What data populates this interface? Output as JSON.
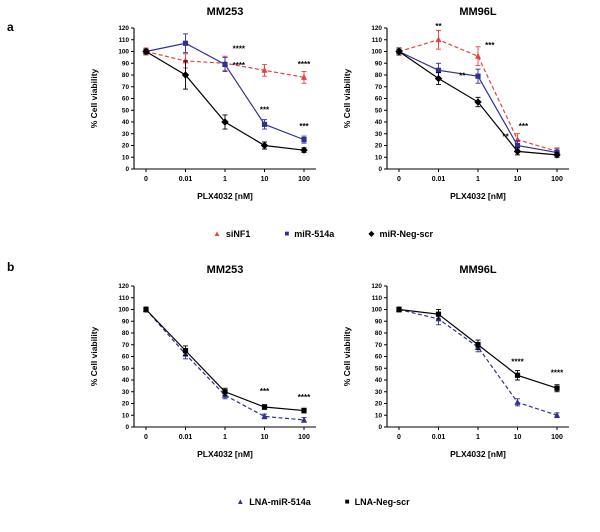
{
  "panel_labels": {
    "a": "a",
    "b": "b"
  },
  "legend_a": [
    {
      "name": "siNF1",
      "color": "#e8413c",
      "marker": "triangle"
    },
    {
      "name": "miR-514a",
      "color": "#2e3192",
      "marker": "square"
    },
    {
      "name": "miR-Neg-scr",
      "color": "#000000",
      "marker": "diamond"
    }
  ],
  "legend_b": [
    {
      "name": "LNA-miR-514a",
      "color": "#2e3192",
      "marker": "triangle"
    },
    {
      "name": "LNA-Neg-scr",
      "color": "#000000",
      "marker": "square"
    }
  ],
  "chart_data": [
    {
      "type": "line",
      "panel": "a",
      "title": "MM253",
      "xlabel": "PLX4032 [nM]",
      "ylabel": "% Cell viability",
      "categories": [
        "0",
        "0.01",
        "1",
        "10",
        "100"
      ],
      "ylim": [
        0,
        120
      ],
      "ytick_step": 10,
      "series": [
        {
          "name": "siNF1",
          "color": "#e8413c",
          "marker": "triangle",
          "dash": true,
          "values": [
            100,
            92,
            90,
            84,
            78
          ],
          "errors": [
            3,
            6,
            6,
            5,
            5
          ]
        },
        {
          "name": "miR-514a",
          "color": "#2e3192",
          "marker": "square",
          "dash": false,
          "values": [
            100,
            107,
            89,
            38,
            25
          ],
          "errors": [
            2,
            8,
            6,
            4,
            3
          ]
        },
        {
          "name": "miR-Neg-scr",
          "color": "#000000",
          "marker": "diamond",
          "dash": false,
          "values": [
            100,
            80,
            40,
            20,
            16
          ],
          "errors": [
            2,
            12,
            6,
            3,
            2
          ]
        }
      ],
      "annotations": [
        {
          "text": "****",
          "xi": 2.35,
          "y": 100
        },
        {
          "text": "****",
          "xi": 2.35,
          "y": 86
        },
        {
          "text": "***",
          "xi": 3.0,
          "y": 48
        },
        {
          "text": "****",
          "xi": 4.0,
          "y": 87
        },
        {
          "text": "***",
          "xi": 4.0,
          "y": 34
        }
      ]
    },
    {
      "type": "line",
      "panel": "a",
      "title": "MM96L",
      "xlabel": "PLX4032 [nM]",
      "ylabel": "% Cell viability",
      "categories": [
        "0",
        "0.01",
        "1",
        "10",
        "100"
      ],
      "ylim": [
        0,
        120
      ],
      "ytick_step": 10,
      "series": [
        {
          "name": "siNF1",
          "color": "#e8413c",
          "marker": "triangle",
          "dash": true,
          "values": [
            100,
            110,
            96,
            25,
            15
          ],
          "errors": [
            3,
            8,
            8,
            5,
            3
          ]
        },
        {
          "name": "miR-514a",
          "color": "#2e3192",
          "marker": "square",
          "dash": false,
          "values": [
            100,
            84,
            79,
            20,
            14
          ],
          "errors": [
            3,
            6,
            6,
            4,
            3
          ]
        },
        {
          "name": "miR-Neg-scr",
          "color": "#000000",
          "marker": "diamond",
          "dash": false,
          "values": [
            100,
            77,
            57,
            15,
            12
          ],
          "errors": [
            3,
            5,
            4,
            3,
            2
          ]
        }
      ],
      "annotations": [
        {
          "text": "**",
          "xi": 1.0,
          "y": 119
        },
        {
          "text": "***",
          "xi": 2.3,
          "y": 103
        },
        {
          "text": "**",
          "xi": 1.6,
          "y": 77
        },
        {
          "text": "**",
          "xi": 2.7,
          "y": 25
        },
        {
          "text": "***",
          "xi": 3.15,
          "y": 34
        }
      ]
    },
    {
      "type": "line",
      "panel": "b",
      "title": "MM253",
      "xlabel": "PLX4032 [nM]",
      "ylabel": "% Cell viability",
      "categories": [
        "0",
        "0.01",
        "1",
        "10",
        "100"
      ],
      "ylim": [
        0,
        120
      ],
      "ytick_step": 10,
      "series": [
        {
          "name": "LNA-miR-514a",
          "color": "#2e3192",
          "marker": "triangle",
          "dash": true,
          "values": [
            100,
            62,
            27,
            9,
            6
          ],
          "errors": [
            2,
            4,
            3,
            2,
            2
          ]
        },
        {
          "name": "LNA-Neg-scr",
          "color": "#000000",
          "marker": "square",
          "dash": false,
          "values": [
            100,
            65,
            30,
            17,
            14
          ],
          "errors": [
            2,
            4,
            3,
            2,
            2
          ]
        }
      ],
      "annotations": [
        {
          "text": "***",
          "xi": 3.0,
          "y": 28
        },
        {
          "text": "****",
          "xi": 4.0,
          "y": 23
        }
      ]
    },
    {
      "type": "line",
      "panel": "b",
      "title": "MM96L",
      "xlabel": "PLX4032 [nM]",
      "ylabel": "% Cell viability",
      "categories": [
        "0",
        "0.01",
        "1",
        "10",
        "100"
      ],
      "ylim": [
        0,
        120
      ],
      "ytick_step": 10,
      "series": [
        {
          "name": "LNA-miR-514a",
          "color": "#2e3192",
          "marker": "triangle",
          "dash": true,
          "values": [
            100,
            92,
            68,
            21,
            10
          ],
          "errors": [
            2,
            5,
            4,
            3,
            2
          ]
        },
        {
          "name": "LNA-Neg-scr",
          "color": "#000000",
          "marker": "square",
          "dash": false,
          "values": [
            100,
            96,
            70,
            44,
            33
          ],
          "errors": [
            2,
            4,
            4,
            4,
            3
          ]
        }
      ],
      "annotations": [
        {
          "text": "****",
          "xi": 3.0,
          "y": 53
        },
        {
          "text": "****",
          "xi": 4.0,
          "y": 44
        }
      ]
    }
  ]
}
